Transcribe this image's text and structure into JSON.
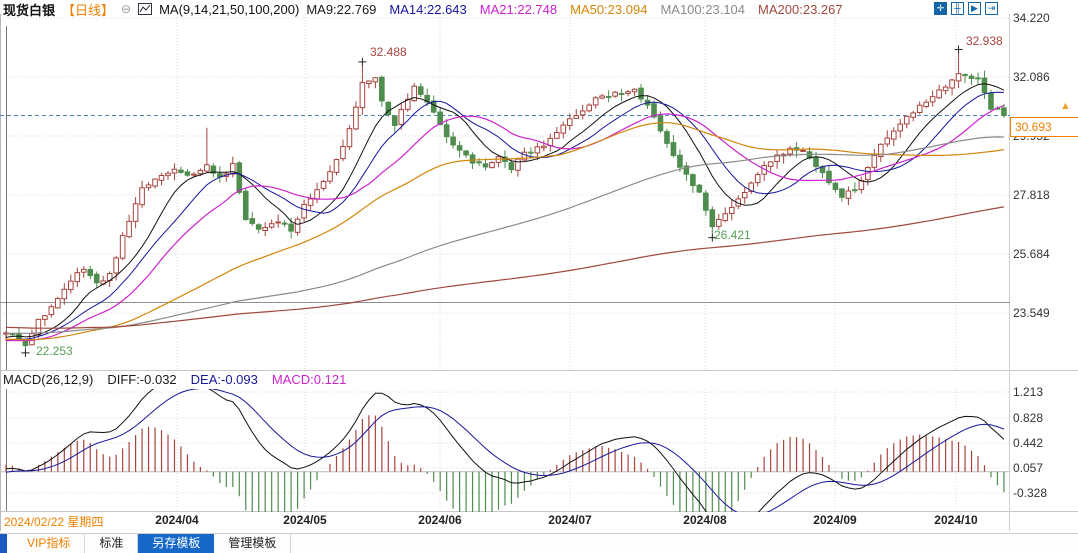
{
  "header": {
    "symbol": "现货白银",
    "period": "【日线】",
    "ma_settings": "MA(9,14,21,50,100,200)",
    "ma_values": [
      {
        "label": "MA9:22.769",
        "color": "#1a1a1a"
      },
      {
        "label": "MA14:22.643",
        "color": "#16169c"
      },
      {
        "label": "MA21:22.748",
        "color": "#cc22cc"
      },
      {
        "label": "MA50:23.094",
        "color": "#d4860a"
      },
      {
        "label": "MA100:23.104",
        "color": "#8a8a8a"
      },
      {
        "label": "MA200:23.267",
        "color": "#a1493d"
      }
    ]
  },
  "toolbar": {
    "icons": [
      {
        "name": "crosshair-move-icon",
        "glyph": "✛",
        "filled": true
      },
      {
        "name": "new-pane-icon",
        "glyph": "╫",
        "filled": false
      },
      {
        "name": "shift-left-icon",
        "glyph": "▶",
        "filled": false
      },
      {
        "name": "shift-right-icon",
        "glyph": "⇥",
        "filled": false
      }
    ]
  },
  "price_axis": {
    "labels": [
      "34.220",
      "32.086",
      "29.952",
      "27.818",
      "25.684",
      "23.549"
    ]
  },
  "current_price": {
    "value": "30.693",
    "color": "#f08000"
  },
  "annotations": [
    {
      "text": "32.488",
      "color": "#a8433c"
    },
    {
      "text": "32.938",
      "color": "#a8433c"
    },
    {
      "text": "26.421",
      "color": "#55a055"
    },
    {
      "text": "22.253",
      "color": "#55a055"
    }
  ],
  "macd_header": {
    "title": "MACD(26,12,9)",
    "title_color": "#1a1a1a",
    "diff": {
      "label": "DIFF:-0.032",
      "color": "#1a1a1a"
    },
    "dea": {
      "label": "DEA:-0.093",
      "color": "#16169c"
    },
    "macd": {
      "label": "MACD:0.121",
      "color": "#cc22cc"
    }
  },
  "macd_axis": {
    "labels": [
      "1.213",
      "0.828",
      "0.442",
      "0.057",
      "-0.328"
    ]
  },
  "x_axis": {
    "crosshair_date": "2024/02/22 星期四",
    "ticks": [
      "2024/04",
      "2024/05",
      "2024/06",
      "2024/07",
      "2024/08",
      "2024/09",
      "2024/10"
    ]
  },
  "tabs": [
    {
      "label": "VIP指标",
      "style": "orange",
      "color": "#f08000"
    },
    {
      "label": "标准",
      "style": "normal"
    },
    {
      "label": "另存模板",
      "style": "selected"
    },
    {
      "label": "管理模板",
      "style": "normal"
    }
  ],
  "chart_style": {
    "up_color": "#a8433c",
    "up_fill": "#ffffff",
    "down_color": "#4e8d4e",
    "ma_colors": [
      "#111111",
      "#16169c",
      "#cc22cc",
      "#d4860a",
      "#8a8a8a",
      "#a1493d"
    ],
    "diff_color": "#111111",
    "dea_color": "#16169c",
    "hist_up": "#a8433c",
    "hist_down": "#4e8d4e",
    "price_line_color": "#4a86c8",
    "grid_color": "#e8d6d6",
    "border_color": "#b8b8b8",
    "hline_color": "#909090",
    "crosshair_color": "#555555",
    "arrow_color": "#f0a030",
    "marker_color": "#222222"
  },
  "chart_data": {
    "type": "candlestick",
    "title": "现货白银 日线 (spot silver daily)",
    "y_axis_values": [
      34.22,
      32.086,
      29.952,
      27.818,
      25.684,
      23.549
    ],
    "macd_axis_values": [
      1.213,
      0.828,
      0.442,
      0.057,
      -0.328
    ],
    "x_tick_labels": [
      "2024/04",
      "2024/05",
      "2024/06",
      "2024/07",
      "2024/08",
      "2024/09",
      "2024/10"
    ],
    "first_date": "2024/02/22",
    "num_candles": 155,
    "last_close": 30.693,
    "horizontal_line_price": 23.93,
    "ma_periods": [
      9,
      14,
      21,
      50,
      100,
      200
    ],
    "macd_params": [
      26,
      12,
      9
    ],
    "marked_points": {
      "feb_low": [
        3,
        22.253
      ],
      "april_spike_high": [
        31,
        30.25
      ],
      "may_high": [
        55,
        32.488
      ],
      "aug_low": [
        109,
        26.421
      ],
      "oct_high": [
        147,
        32.938
      ]
    },
    "close_keypoints": [
      [
        0,
        22.85
      ],
      [
        2,
        22.6
      ],
      [
        3,
        22.42
      ],
      [
        5,
        23.3
      ],
      [
        8,
        24.0
      ],
      [
        10,
        24.7
      ],
      [
        12,
        25.2
      ],
      [
        14,
        24.6
      ],
      [
        16,
        24.9
      ],
      [
        18,
        26.3
      ],
      [
        21,
        28.0
      ],
      [
        23,
        28.4
      ],
      [
        26,
        28.8
      ],
      [
        29,
        28.5
      ],
      [
        31,
        28.9
      ],
      [
        33,
        28.4
      ],
      [
        35,
        28.9
      ],
      [
        37,
        27.0
      ],
      [
        39,
        26.6
      ],
      [
        42,
        26.9
      ],
      [
        44,
        26.5
      ],
      [
        46,
        27.4
      ],
      [
        49,
        28.3
      ],
      [
        52,
        29.5
      ],
      [
        54,
        31.0
      ],
      [
        55,
        31.9
      ],
      [
        57,
        32.1
      ],
      [
        58,
        31.2
      ],
      [
        60,
        30.4
      ],
      [
        63,
        31.8
      ],
      [
        66,
        30.8
      ],
      [
        68,
        29.9
      ],
      [
        70,
        29.4
      ],
      [
        72,
        29.0
      ],
      [
        74,
        28.9
      ],
      [
        76,
        29.2
      ],
      [
        78,
        28.8
      ],
      [
        80,
        29.3
      ],
      [
        83,
        29.6
      ],
      [
        86,
        30.3
      ],
      [
        89,
        30.9
      ],
      [
        91,
        31.3
      ],
      [
        94,
        31.5
      ],
      [
        97,
        31.6
      ],
      [
        99,
        31.0
      ],
      [
        101,
        30.2
      ],
      [
        103,
        29.3
      ],
      [
        105,
        28.5
      ],
      [
        107,
        27.9
      ],
      [
        109,
        26.7
      ],
      [
        111,
        27.1
      ],
      [
        113,
        27.6
      ],
      [
        115,
        28.2
      ],
      [
        117,
        28.9
      ],
      [
        119,
        29.2
      ],
      [
        121,
        29.5
      ],
      [
        123,
        29.4
      ],
      [
        125,
        28.9
      ],
      [
        127,
        28.3
      ],
      [
        129,
        27.8
      ],
      [
        131,
        28.0
      ],
      [
        133,
        28.8
      ],
      [
        135,
        29.7
      ],
      [
        137,
        30.2
      ],
      [
        139,
        30.6
      ],
      [
        141,
        31.0
      ],
      [
        143,
        31.4
      ],
      [
        145,
        31.8
      ],
      [
        147,
        32.2
      ],
      [
        149,
        32.0
      ],
      [
        150,
        32.0
      ],
      [
        152,
        30.9
      ],
      [
        153,
        31.0
      ],
      [
        154,
        30.693
      ]
    ],
    "prehistory_keypoints": [
      [
        -200,
        24.1
      ],
      [
        -178,
        23.5
      ],
      [
        -155,
        22.9
      ],
      [
        -138,
        23.4
      ],
      [
        -118,
        23.15
      ],
      [
        -98,
        22.35
      ],
      [
        -80,
        23.35
      ],
      [
        -58,
        23.1
      ],
      [
        -38,
        22.5
      ],
      [
        -24,
        22.75
      ],
      [
        -12,
        22.35
      ],
      [
        -5,
        22.6
      ],
      [
        -1,
        22.78
      ]
    ],
    "note": "close_keypoints/marked_points read off the chart; intermediate candles, MAs and MACD are derived estimates"
  }
}
